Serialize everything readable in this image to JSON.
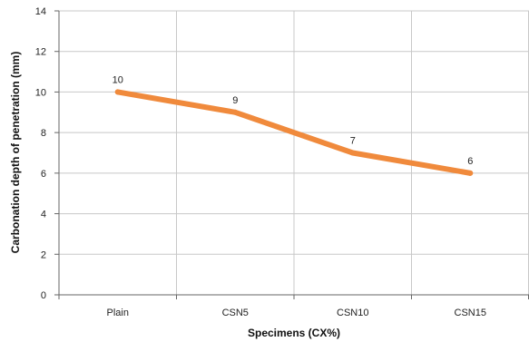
{
  "chart_data": {
    "type": "line",
    "title": "",
    "xlabel": "Specimens (CX%)",
    "ylabel": "Carbonation depth of penetration  (mm)",
    "categories": [
      "Plain",
      "CSN5",
      "CSN10",
      "CSN15"
    ],
    "series": [
      {
        "values": [
          10,
          9,
          7,
          6
        ],
        "data_labels": [
          "10",
          "9",
          "7",
          "6"
        ]
      }
    ],
    "ylim": [
      0,
      14
    ],
    "yticks": [
      0,
      2,
      4,
      6,
      8,
      10,
      12,
      14
    ],
    "grid": "both",
    "legend": "none",
    "colors": {
      "line": "#F08A3C",
      "grid": "#C8C8C8",
      "axis": "#666666",
      "text": "#222222"
    }
  }
}
